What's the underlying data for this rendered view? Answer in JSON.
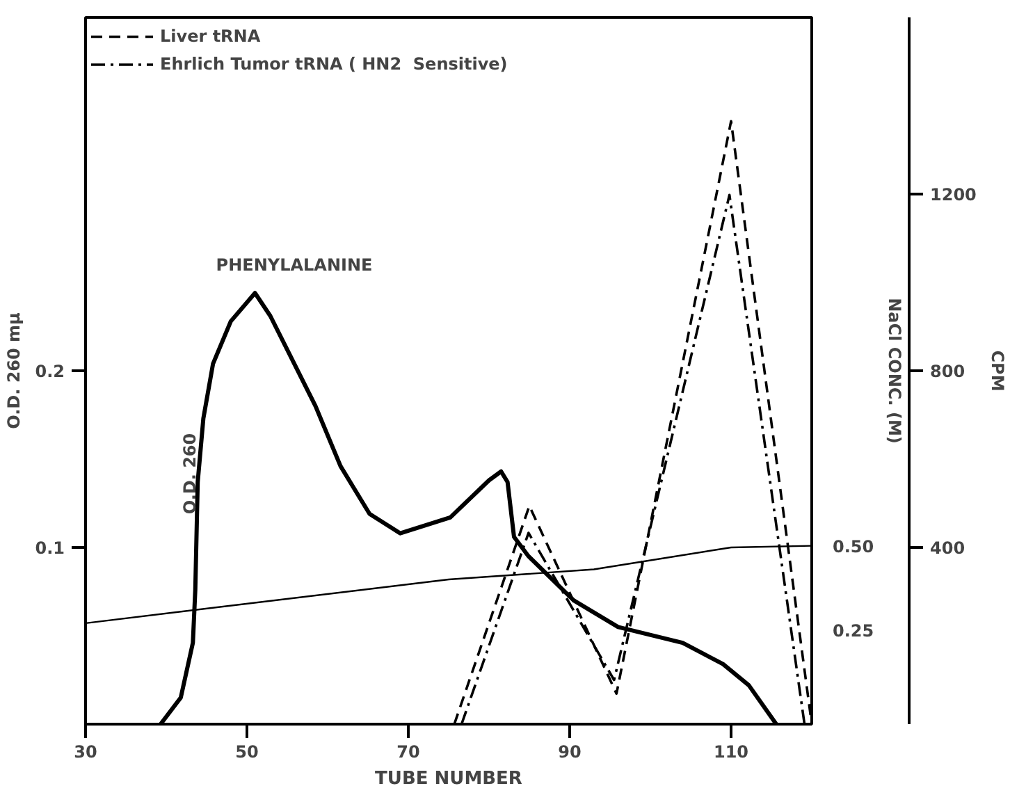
{
  "chart_data": {
    "type": "line",
    "xlabel": "TUBE NUMBER",
    "ylabel": "O.D. 260 mμ",
    "y2label": "NaCl CONC. (M)",
    "y3label": "CPM",
    "xlim": [
      30,
      120
    ],
    "xticks": [
      30,
      50,
      70,
      90,
      110
    ],
    "ylim": [
      0,
      0.4
    ],
    "yticks": [
      0.1,
      0.2
    ],
    "y2lim": [
      -0.03,
      2.07
    ],
    "y2ticks": [
      0.25,
      {
        "value": 0.5,
        "label": "0.50"
      }
    ],
    "y3lim": [
      0,
      1600
    ],
    "y3ticks": [
      400,
      800,
      1200
    ],
    "grid": false,
    "legend": "top left",
    "line_style": "solid",
    "series": [
      {
        "color": "#000000",
        "x": [
          39.3,
          41.8,
          43.3,
          43.6,
          43.9,
          44.6,
          45.8,
          48,
          51,
          52.9,
          58.5,
          61.6,
          65.2,
          69,
          75.2,
          80,
          81.5,
          82.3,
          83.1,
          84.9,
          90.5,
          96,
          104,
          109,
          112.2,
          115.6
        ],
        "values": [
          0,
          0.015,
          0.046,
          0.076,
          0.137,
          0.173,
          0.204,
          0.228,
          0.244,
          0.231,
          0.18,
          0.146,
          0.119,
          0.108,
          0.117,
          0.138,
          0.143,
          0.137,
          0.106,
          0.095,
          0.07,
          0.055,
          0.046,
          0.034,
          0.022,
          0
        ]
      },
      {
        "color": "#000000",
        "axis": "y2",
        "x": [
          30,
          75,
          93,
          110,
          120
        ],
        "values": [
          0.27,
          0.4,
          0.43,
          0.495,
          0.5
        ]
      },
      {
        "name": "Liver tRNA",
        "color": "#000000",
        "axis": "y3",
        "line_style": "dashed",
        "x": [
          75.7,
          85,
          95.8,
          110,
          120
        ],
        "values": [
          0,
          494,
          69,
          1365,
          0
        ]
      },
      {
        "name": "Ehrlich Tumor tRNA ( HN2  Sensitive)",
        "color": "#000000",
        "axis": "y3",
        "line_style": "dashdot",
        "x": [
          76.6,
          84.9,
          95.5,
          109.8,
          119.1
        ],
        "values": [
          0,
          433,
          100,
          1198,
          0
        ]
      }
    ],
    "annotations": [
      "PHENYLALANINE",
      "O.D. 260"
    ]
  }
}
